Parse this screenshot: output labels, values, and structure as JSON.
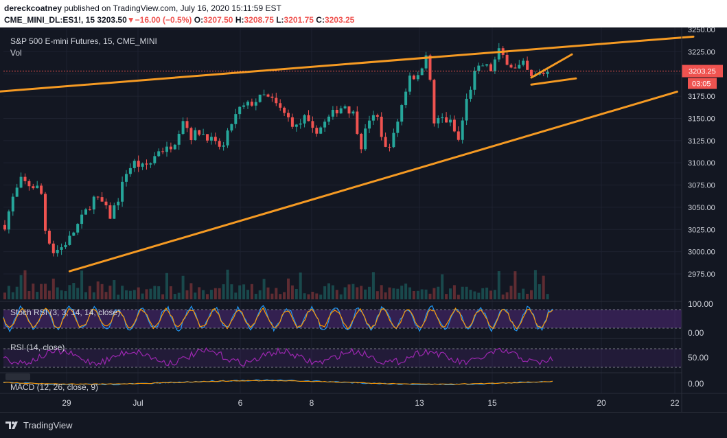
{
  "header": {
    "author": "dereckcoatney",
    "published_text": "published on TradingView.com, July 16, 2020 15:11:59 EST",
    "symbol": "CME_MINI_DL:ES1!, 15",
    "last": "3203.50",
    "arrow": "▼",
    "change": "−16.00 (−0.5%)",
    "o_label": "O:",
    "o_value": "3207.50",
    "h_label": "H:",
    "h_value": "3208.75",
    "l_label": "L:",
    "l_value": "3201.75",
    "c_label": "C:",
    "c_value": "3203.25"
  },
  "legend": {
    "title": "S&P 500 E-mini Futures, 15, CME_MINI",
    "vol": "Vol",
    "price_tag": "3203.25",
    "countdown": "03:05"
  },
  "indicators": {
    "stoch": {
      "label": "Stoch RSI (3, 3, 14, 14, close)",
      "ticks": [
        "100.00",
        "0.00"
      ]
    },
    "rsi": {
      "label": "RSI (14, close)",
      "ticks": [
        "50.00"
      ]
    },
    "macd": {
      "label": "MACD (12, 26, close, 9)",
      "ticks": [
        "0.00"
      ]
    }
  },
  "footer": {
    "brand": "TradingView"
  },
  "colors": {
    "bg": "#131722",
    "up": "#26a69a",
    "down": "#ef5350",
    "trend": "#f59a23",
    "stoch_k": "#2196f3",
    "stoch_d": "#ff9800",
    "rsi": "#9c27b0",
    "band": "#5b2c8a"
  },
  "chart_data": {
    "type": "candlestick",
    "ylim": [
      2960,
      3260
    ],
    "y_ticks": [
      2975,
      3000,
      3025,
      3050,
      3075,
      3100,
      3125,
      3150,
      3175,
      3200,
      3225,
      3250
    ],
    "x_ticks": [
      "29",
      "Jul",
      "6",
      "8",
      "13",
      "15",
      "20",
      "22"
    ],
    "last_price": 3203.25,
    "price_path": [
      [
        0,
        3030
      ],
      [
        2,
        3060
      ],
      [
        4,
        3080
      ],
      [
        6,
        3075
      ],
      [
        8,
        3072
      ],
      [
        9,
        3065
      ],
      [
        10,
        3025
      ],
      [
        12,
        3000
      ],
      [
        14,
        3005
      ],
      [
        16,
        3015
      ],
      [
        18,
        3030
      ],
      [
        20,
        3045
      ],
      [
        22,
        3060
      ],
      [
        24,
        3055
      ],
      [
        26,
        3040
      ],
      [
        28,
        3060
      ],
      [
        30,
        3090
      ],
      [
        32,
        3100
      ],
      [
        34,
        3095
      ],
      [
        36,
        3100
      ],
      [
        38,
        3115
      ],
      [
        40,
        3115
      ],
      [
        42,
        3125
      ],
      [
        44,
        3150
      ],
      [
        46,
        3130
      ],
      [
        48,
        3135
      ],
      [
        50,
        3130
      ],
      [
        52,
        3120
      ],
      [
        54,
        3118
      ],
      [
        56,
        3145
      ],
      [
        58,
        3160
      ],
      [
        60,
        3165
      ],
      [
        62,
        3170
      ],
      [
        64,
        3175
      ],
      [
        66,
        3170
      ],
      [
        68,
        3160
      ],
      [
        70,
        3150
      ],
      [
        72,
        3140
      ],
      [
        74,
        3150
      ],
      [
        76,
        3135
      ],
      [
        78,
        3140
      ],
      [
        80,
        3150
      ],
      [
        82,
        3160
      ],
      [
        84,
        3165
      ],
      [
        86,
        3155
      ],
      [
        88,
        3120
      ],
      [
        90,
        3150
      ],
      [
        92,
        3150
      ],
      [
        94,
        3115
      ],
      [
        96,
        3130
      ],
      [
        98,
        3165
      ],
      [
        100,
        3200
      ],
      [
        102,
        3195
      ],
      [
        104,
        3225
      ],
      [
        105,
        3190
      ],
      [
        106,
        3145
      ],
      [
        108,
        3150
      ],
      [
        110,
        3145
      ],
      [
        112,
        3125
      ],
      [
        114,
        3170
      ],
      [
        116,
        3200
      ],
      [
        118,
        3210
      ],
      [
        120,
        3205
      ],
      [
        122,
        3225
      ],
      [
        124,
        3215
      ],
      [
        126,
        3205
      ],
      [
        128,
        3210
      ],
      [
        130,
        3195
      ],
      [
        132,
        3200
      ],
      [
        134,
        3203
      ]
    ],
    "trend_lines": [
      {
        "name": "upper",
        "from": [
          -2,
          3180
        ],
        "to": [
          170,
          3242
        ]
      },
      {
        "name": "lower",
        "from": [
          16,
          2978
        ],
        "to": [
          166,
          3180
        ]
      },
      {
        "name": "wedge-top",
        "from": [
          130,
          3196
        ],
        "to": [
          140,
          3222
        ]
      },
      {
        "name": "wedge-bottom",
        "from": [
          130,
          3188
        ],
        "to": [
          141,
          3195
        ]
      }
    ]
  }
}
